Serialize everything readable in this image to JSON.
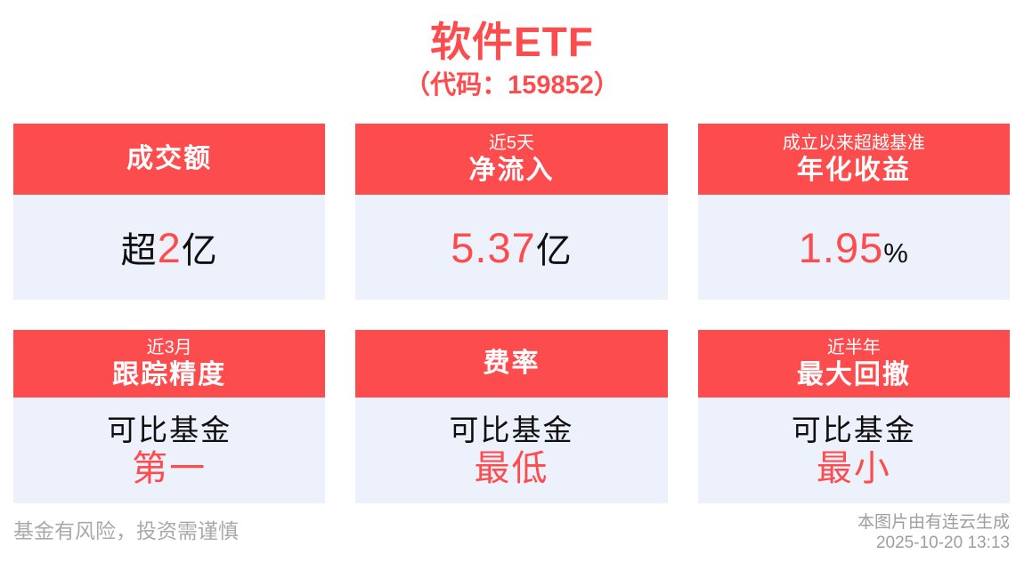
{
  "header": {
    "title": "软件ETF",
    "subtitle": "（代码：159852）"
  },
  "colors": {
    "accent_red": "#fd4c4e",
    "card_body_bg": "#ecf1fc",
    "text_dark": "#0f0f0f",
    "footer_gray": "#a9a9a9"
  },
  "cards": [
    {
      "tagline": "",
      "title": "成交额",
      "value_prefix": "超",
      "value": "2",
      "value_suffix": "亿"
    },
    {
      "tagline": "近5天",
      "title": "净流入",
      "value_prefix": "",
      "value": "5.37",
      "value_suffix": "亿"
    },
    {
      "tagline": "成立以来超越基准",
      "title": "年化收益",
      "value_prefix": "",
      "value": "1.95",
      "value_suffix": "%"
    },
    {
      "tagline": "近3月",
      "title": "跟踪精度",
      "line1": "可比基金",
      "line2": "第一"
    },
    {
      "tagline": "",
      "title": "费率",
      "line1": "可比基金",
      "line2": "最低"
    },
    {
      "tagline": "近半年",
      "title": "最大回撤",
      "line1": "可比基金",
      "line2": "最小"
    }
  ],
  "footer": {
    "disclaimer": "基金有风险，投资需谨慎",
    "source": "本图片由有连云生成",
    "timestamp": "2025-10-20 13:13"
  }
}
